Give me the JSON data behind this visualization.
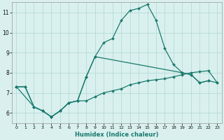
{
  "title": "",
  "xlabel": "Humidex (Indice chaleur)",
  "bg_color": "#d9f0ee",
  "grid_color": "#aed8d4",
  "line_color": "#1a7a6e",
  "xlim": [
    -0.5,
    23.5
  ],
  "ylim": [
    5.5,
    11.5
  ],
  "xticks": [
    0,
    1,
    2,
    3,
    4,
    5,
    6,
    7,
    8,
    9,
    10,
    11,
    12,
    13,
    14,
    15,
    16,
    17,
    18,
    19,
    20,
    21,
    22,
    23
  ],
  "yticks": [
    6,
    7,
    8,
    9,
    10,
    11
  ],
  "lines": [
    {
      "x": [
        0,
        1,
        2,
        3,
        4,
        5,
        6,
        7,
        8,
        9,
        10,
        11,
        12,
        13,
        14,
        15,
        16,
        17,
        18,
        19,
        20,
        21,
        22
      ],
      "y": [
        7.3,
        7.3,
        6.3,
        6.1,
        5.8,
        6.1,
        6.5,
        6.6,
        7.8,
        8.8,
        9.5,
        9.7,
        10.6,
        11.1,
        11.2,
        11.4,
        10.6,
        9.2,
        8.4,
        8.0,
        7.9,
        7.5,
        7.6
      ]
    },
    {
      "x": [
        0,
        2,
        3,
        4,
        5,
        6,
        7,
        8,
        9,
        19,
        20,
        21,
        22,
        23
      ],
      "y": [
        7.3,
        6.3,
        6.1,
        5.8,
        6.1,
        6.5,
        6.6,
        7.8,
        8.8,
        8.0,
        7.9,
        7.5,
        7.6,
        7.5
      ]
    },
    {
      "x": [
        0,
        1,
        2,
        3,
        4,
        5,
        6,
        7,
        8,
        9,
        10,
        11,
        12,
        13,
        14,
        15,
        16,
        17,
        18,
        19,
        20,
        21,
        22,
        23
      ],
      "y": [
        7.3,
        7.3,
        6.3,
        6.1,
        5.8,
        6.1,
        6.5,
        6.6,
        6.6,
        6.8,
        7.0,
        7.1,
        7.2,
        7.4,
        7.5,
        7.6,
        7.65,
        7.7,
        7.8,
        7.9,
        8.0,
        8.05,
        8.1,
        7.5
      ]
    }
  ]
}
